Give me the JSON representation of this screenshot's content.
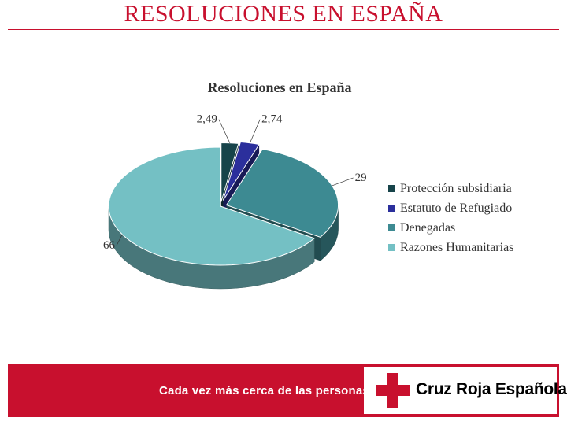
{
  "slide": {
    "title": "RESOLUCIONES EN ESPAÑA"
  },
  "chart_data": {
    "type": "pie",
    "title": "Resoluciones en España",
    "categories": [
      "Protección subsidiaria",
      "Estatuto de Refugiado",
      "Denegadas",
      "Razones Humanitarias"
    ],
    "values": [
      2.49,
      2.74,
      29,
      66
    ],
    "value_labels": [
      "2,49",
      "2,74",
      "29",
      "66"
    ],
    "colors": [
      "#17444a",
      "#2b2f9c",
      "#3d8a92",
      "#74c0c4"
    ],
    "style": "3d-exploded",
    "legend_position": "right"
  },
  "footer": {
    "tagline": "Cada vez más cerca de las personas",
    "organization": "Cruz Roja Española",
    "icon": "red-cross-icon",
    "brand_color": "#c8102e"
  }
}
